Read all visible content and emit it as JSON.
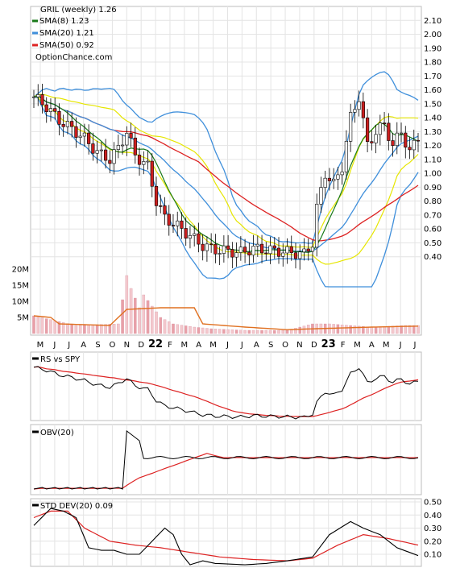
{
  "chart_data": [
    {
      "type": "candlestick",
      "title": "GRIL (weekly) 1.26",
      "source": "OptionChance.com",
      "legend": [
        {
          "label": "SMA(8) 1.23",
          "color": "#1a7a1a"
        },
        {
          "label": "SMA(20) 1.21",
          "color": "#3f8fdb"
        },
        {
          "label": "SMA(50) 0.92",
          "color": "#dd2222"
        }
      ],
      "price_axis": {
        "min": 0.3,
        "max": 2.2,
        "ticks": [
          2.1,
          2.0,
          1.9,
          1.8,
          1.7,
          1.6,
          1.5,
          1.4,
          1.3,
          1.2,
          1.1,
          1.0,
          0.9,
          0.8,
          0.7,
          0.6,
          0.5,
          0.4
        ],
        "tick_labels": [
          "2.10",
          "2.00",
          "1.90",
          "1.80",
          "1.70",
          "1.60",
          "1.50",
          "1.40",
          "1.30",
          "1.20",
          "1.10",
          "1.00",
          "0.90",
          "0.80",
          "0.70",
          "0.60",
          "0.50",
          "0.40"
        ]
      },
      "volume_axis": {
        "min": 0,
        "max": 22,
        "ticks": [
          20,
          15,
          10,
          5
        ],
        "tick_labels": [
          "20M",
          "15M",
          "10M",
          "5M"
        ]
      },
      "x_labels": [
        {
          "label": "M",
          "bold": false
        },
        {
          "label": "J",
          "bold": false
        },
        {
          "label": "J",
          "bold": false
        },
        {
          "label": "A",
          "bold": false
        },
        {
          "label": "S",
          "bold": false
        },
        {
          "label": "O",
          "bold": false
        },
        {
          "label": "N",
          "bold": false
        },
        {
          "label": "D",
          "bold": false
        },
        {
          "label": "22",
          "bold": true
        },
        {
          "label": "F",
          "bold": false
        },
        {
          "label": "M",
          "bold": false
        },
        {
          "label": "A",
          "bold": false
        },
        {
          "label": "M",
          "bold": false
        },
        {
          "label": "J",
          "bold": false
        },
        {
          "label": "J",
          "bold": false
        },
        {
          "label": "A",
          "bold": false
        },
        {
          "label": "S",
          "bold": false
        },
        {
          "label": "O",
          "bold": false
        },
        {
          "label": "N",
          "bold": false
        },
        {
          "label": "D",
          "bold": false
        },
        {
          "label": "23",
          "bold": true
        },
        {
          "label": "F",
          "bold": false
        },
        {
          "label": "M",
          "bold": false
        },
        {
          "label": "A",
          "bold": false
        },
        {
          "label": "M",
          "bold": false
        },
        {
          "label": "J",
          "bold": false
        },
        {
          "label": "J",
          "bold": false
        }
      ],
      "close_path": [
        [
          0,
          1.55
        ],
        [
          3,
          1.48
        ],
        [
          6,
          1.38
        ],
        [
          9,
          1.32
        ],
        [
          12,
          1.25
        ],
        [
          15,
          1.15
        ],
        [
          18,
          1.1
        ],
        [
          20,
          1.18
        ],
        [
          22,
          1.3
        ],
        [
          24,
          1.13
        ],
        [
          27,
          1.05
        ],
        [
          29,
          0.8
        ],
        [
          31,
          0.68
        ],
        [
          34,
          0.62
        ],
        [
          37,
          0.55
        ],
        [
          40,
          0.48
        ],
        [
          43,
          0.45
        ],
        [
          46,
          0.44
        ],
        [
          49,
          0.43
        ],
        [
          52,
          0.46
        ],
        [
          55,
          0.45
        ],
        [
          58,
          0.44
        ],
        [
          61,
          0.43
        ],
        [
          64,
          0.42
        ],
        [
          66,
          0.5
        ],
        [
          67,
          0.75
        ],
        [
          69,
          1.0
        ],
        [
          71,
          0.92
        ],
        [
          73,
          1.05
        ],
        [
          75,
          1.4
        ],
        [
          77,
          1.55
        ],
        [
          79,
          1.2
        ],
        [
          81,
          1.3
        ],
        [
          83,
          1.35
        ],
        [
          85,
          1.2
        ],
        [
          87,
          1.3
        ],
        [
          89,
          1.15
        ],
        [
          91,
          1.26
        ]
      ],
      "volume": [
        [
          0,
          5.5
        ],
        [
          10,
          2.5
        ],
        [
          20,
          3
        ],
        [
          22,
          18
        ],
        [
          23,
          14
        ],
        [
          25,
          8
        ],
        [
          26,
          12
        ],
        [
          30,
          5
        ],
        [
          33,
          3
        ],
        [
          38,
          2
        ],
        [
          42,
          1.5
        ],
        [
          50,
          1
        ],
        [
          60,
          1
        ],
        [
          66,
          3
        ],
        [
          70,
          3
        ],
        [
          80,
          2
        ],
        [
          88,
          2.5
        ],
        [
          91,
          2.5
        ]
      ],
      "volume_avg": [
        [
          0,
          5.5
        ],
        [
          4,
          5
        ],
        [
          6,
          3
        ],
        [
          18,
          2.5
        ],
        [
          22,
          7.5
        ],
        [
          30,
          8
        ],
        [
          38,
          8
        ],
        [
          40,
          3
        ],
        [
          50,
          2
        ],
        [
          60,
          1.2
        ],
        [
          67,
          1.5
        ],
        [
          80,
          2
        ],
        [
          91,
          2.3
        ]
      ]
    },
    {
      "type": "line",
      "title": "RS vs SPY",
      "series": [
        {
          "name": "RS vs SPY",
          "color": "#000000"
        },
        {
          "color": "#dd2222"
        }
      ]
    },
    {
      "type": "line",
      "title": "OBV(20)",
      "series": [
        {
          "name": "OBV(20)",
          "color": "#000000"
        },
        {
          "color": "#dd2222"
        }
      ]
    },
    {
      "type": "line",
      "title": "STD DEV(20) 0.09",
      "y_axis": {
        "ticks": [
          0.5,
          0.4,
          0.3,
          0.2,
          0.1
        ],
        "tick_labels": [
          "0.50",
          "0.40",
          "0.30",
          "0.20",
          "0.10"
        ]
      },
      "series": [
        {
          "name": "STD DEV(20)",
          "color": "#000000",
          "values": [
            [
              0,
              0.32
            ],
            [
              4,
              0.45
            ],
            [
              7,
              0.43
            ],
            [
              10,
              0.38
            ],
            [
              13,
              0.15
            ],
            [
              16,
              0.13
            ],
            [
              19,
              0.13
            ],
            [
              22,
              0.1
            ],
            [
              25,
              0.1
            ],
            [
              28,
              0.2
            ],
            [
              31,
              0.3
            ],
            [
              33,
              0.25
            ],
            [
              35,
              0.1
            ],
            [
              37,
              0.02
            ],
            [
              40,
              0.05
            ],
            [
              43,
              0.03
            ],
            [
              50,
              0.02
            ],
            [
              55,
              0.03
            ],
            [
              60,
              0.05
            ],
            [
              66,
              0.08
            ],
            [
              70,
              0.25
            ],
            [
              75,
              0.35
            ],
            [
              78,
              0.3
            ],
            [
              82,
              0.25
            ],
            [
              86,
              0.15
            ],
            [
              91,
              0.09
            ]
          ]
        },
        {
          "color": "#dd2222",
          "values": [
            [
              0,
              0.38
            ],
            [
              4,
              0.43
            ],
            [
              8,
              0.43
            ],
            [
              12,
              0.3
            ],
            [
              18,
              0.2
            ],
            [
              24,
              0.17
            ],
            [
              30,
              0.15
            ],
            [
              36,
              0.12
            ],
            [
              44,
              0.08
            ],
            [
              52,
              0.06
            ],
            [
              60,
              0.05
            ],
            [
              66,
              0.07
            ],
            [
              72,
              0.17
            ],
            [
              78,
              0.25
            ],
            [
              84,
              0.22
            ],
            [
              91,
              0.17
            ]
          ]
        }
      ]
    }
  ]
}
